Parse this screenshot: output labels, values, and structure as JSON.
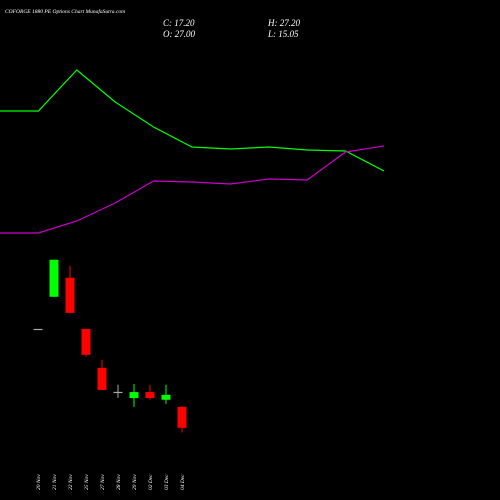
{
  "chart_data": [
    {
      "type": "candlestick",
      "title": "COFORGE 1880  PE Options  Chart MunafaSutra.com",
      "ohlc_labels": {
        "close": "C: 17.20",
        "high": "H: 27.20",
        "open": "O: 27.00",
        "low": "L: 15.05"
      },
      "categories": [
        "20 Nov",
        "21 Nov",
        "22 Nov",
        "25 Nov",
        "27 Nov",
        "28 Nov",
        "29 Nov",
        "02 Dec",
        "03 Dec",
        "04 Dec"
      ],
      "open": [
        63.4,
        78.4,
        87.3,
        63.4,
        45.2,
        34.0,
        31.1,
        33.9,
        30.3,
        27.0
      ],
      "high": [
        63.4,
        95.7,
        92.9,
        63.4,
        49.0,
        37.3,
        37.7,
        37.3,
        37.3,
        27.2
      ],
      "low": [
        63.4,
        78.4,
        70.9,
        50.4,
        34.9,
        31.2,
        27.0,
        30.3,
        28.4,
        15.05
      ],
      "close": [
        63.4,
        95.7,
        70.9,
        51.3,
        34.9,
        34.0,
        33.9,
        31.1,
        32.6,
        17.2
      ],
      "up_color": "#00ff00",
      "down_color": "#ff0000",
      "doji_color": "#aaaaaa",
      "ylim": [
        -16.5,
        217
      ]
    },
    {
      "type": "line",
      "categories": [
        null,
        null,
        null,
        null,
        null,
        null,
        null,
        null,
        null,
        null,
        null
      ],
      "series": [
        {
          "color": "#00ff00",
          "values": [
            77.8,
            77.8,
            86.0,
            79.6,
            74.6,
            70.6,
            70.2,
            70.6,
            70.0,
            69.8,
            65.8
          ]
        },
        {
          "color": "#cc00cc",
          "values": [
            53.4,
            53.4,
            55.8,
            59.4,
            63.8,
            63.6,
            63.2,
            64.2,
            64.0,
            69.6,
            70.8
          ]
        }
      ],
      "ylim": [
        0,
        100
      ]
    }
  ]
}
